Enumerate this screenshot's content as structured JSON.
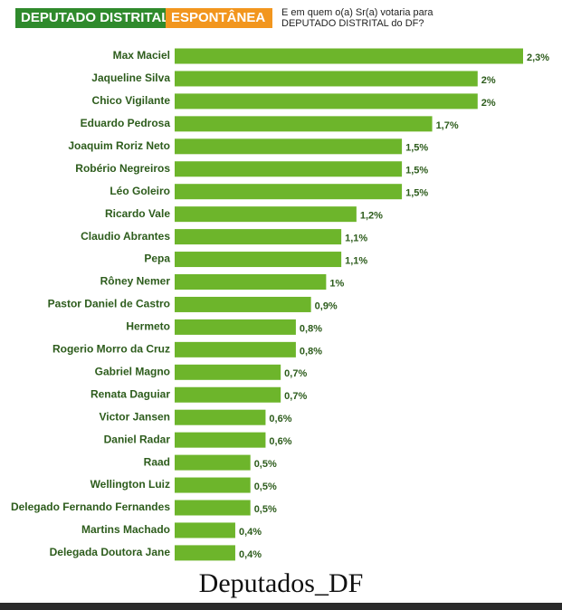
{
  "chart_data": {
    "type": "bar",
    "orientation": "horizontal",
    "title": "DEPUTADO DISTRITAL",
    "tag": "ESPONTÂNEA",
    "subtitle": "E em quem o(a) Sr(a) votaria para DEPUTADO DISTRITAL do DF?",
    "categories": [
      "Max Maciel",
      "Jaqueline Silva",
      "Chico Vigilante",
      "Eduardo Pedrosa",
      "Joaquim Roriz Neto",
      "Robério Negreiros",
      "Léo Goleiro",
      "Ricardo Vale",
      "Claudio Abrantes",
      "Pepa",
      "Rôney Nemer",
      "Pastor Daniel de Castro",
      "Hermeto",
      "Rogerio Morro da Cruz",
      "Gabriel Magno",
      "Renata Daguiar",
      "Victor Jansen",
      "Daniel Radar",
      "Raad",
      "Wellington Luiz",
      "Delegado Fernando Fernandes",
      "Martins Machado",
      "Delegada Doutora Jane"
    ],
    "values": [
      2.3,
      2,
      2,
      1.7,
      1.5,
      1.5,
      1.5,
      1.2,
      1.1,
      1.1,
      1,
      0.9,
      0.8,
      0.8,
      0.7,
      0.7,
      0.6,
      0.6,
      0.5,
      0.5,
      0.5,
      0.4,
      0.4
    ],
    "value_labels": [
      "2,3%",
      "2%",
      "2%",
      "1,7%",
      "1,5%",
      "1,5%",
      "1,5%",
      "1,2%",
      "1,1%",
      "1,1%",
      "1%",
      "0,9%",
      "0,8%",
      "0,8%",
      "0,7%",
      "0,7%",
      "0,6%",
      "0,6%",
      "0,5%",
      "0,5%",
      "0,5%",
      "0,4%",
      "0,4%"
    ],
    "color": "#6db52b",
    "footer": "Deputados_DF"
  }
}
